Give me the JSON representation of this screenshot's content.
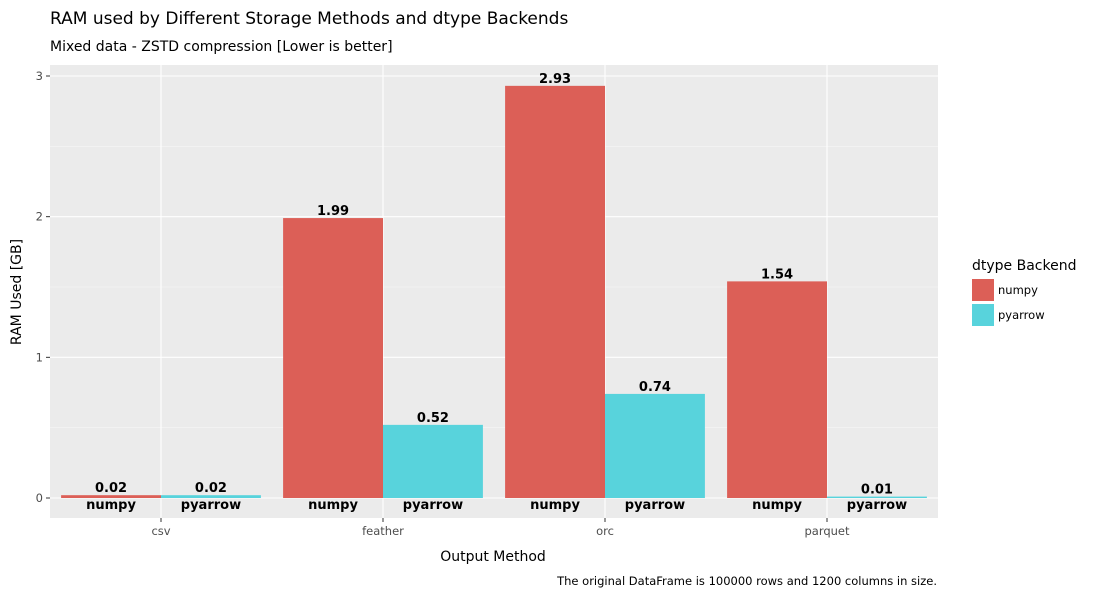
{
  "chart_data": {
    "type": "bar",
    "title": "RAM used by Different Storage Methods and dtype Backends",
    "subtitle": "Mixed data - ZSTD compression [Lower is better]",
    "xlabel": "Output Method",
    "ylabel": "RAM Used [GB]",
    "caption": "The original DataFrame is 100000 rows and 1200 columns in size.",
    "categories": [
      "csv",
      "feather",
      "orc",
      "parquet"
    ],
    "series": [
      {
        "name": "numpy",
        "color": "#dc5f57",
        "values": [
          0.02,
          1.99,
          2.93,
          1.54
        ],
        "labels": [
          "0.02",
          "1.99",
          "2.93",
          "1.54"
        ]
      },
      {
        "name": "pyarrow",
        "color": "#58d3dc",
        "values": [
          0.02,
          0.52,
          0.74,
          0.01
        ],
        "labels": [
          "0.02",
          "0.52",
          "0.74",
          "0.01"
        ]
      }
    ],
    "ylim": [
      0,
      3.08
    ],
    "yticks": [
      0,
      1,
      2,
      3
    ],
    "ytick_labels": [
      "0",
      "1",
      "2",
      "3"
    ],
    "grid": true,
    "legend": {
      "title": "dtype Backend",
      "position": "right"
    }
  }
}
